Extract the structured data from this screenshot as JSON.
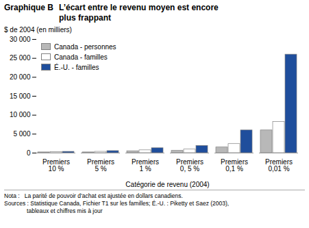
{
  "chart_data": {
    "type": "bar",
    "title": "Graphique B",
    "subtitle": "L’écart entre le revenu moyen est encore\nplus frappant",
    "ylabel": "$ de 2004 (en milliers)",
    "xlabel": "Catégorie de revenu (2004)",
    "categories": [
      "Premiers\n10 %",
      "Premiers\n5 %",
      "Premiers\n1 %",
      "Premiers\n0, 5 %",
      "Premiers\n0,1 %",
      "Premiers\n0,01 %"
    ],
    "series": [
      {
        "name": "Canada - personnes",
        "color": "#b8b8b8",
        "values": [
          200,
          200,
          500,
          600,
          1500,
          6000
        ]
      },
      {
        "name": "Canada - familles",
        "color": "#ffffff",
        "values": [
          280,
          350,
          750,
          950,
          2400,
          8200
        ]
      },
      {
        "name": "É.-U. - familles",
        "color": "#1f4e9c",
        "values": [
          350,
          550,
          1300,
          1900,
          6000,
          26000
        ]
      }
    ],
    "ylim": [
      0,
      30000
    ],
    "yticks": [
      0,
      {
        "value": 5000,
        "label": "5 000"
      },
      {
        "value": 10000,
        "label": "10 000"
      },
      {
        "value": 15000,
        "label": "15 000"
      },
      {
        "value": 20000,
        "label": "20 000"
      },
      {
        "value": 25000,
        "label": "25 000"
      },
      {
        "value": 30000,
        "label": "30 000"
      }
    ],
    "legend": "upper left",
    "grid": false,
    "annotations": [
      "Nota :   La parité de pouvoir d’achat est ajustée en dollars canadiens.\nSources : Statistique Canada, Fichier T1 sur les familles; É.-U. : Piketty et Saez (2003),\n              tableaux et chiffres mis à jour"
    ]
  }
}
